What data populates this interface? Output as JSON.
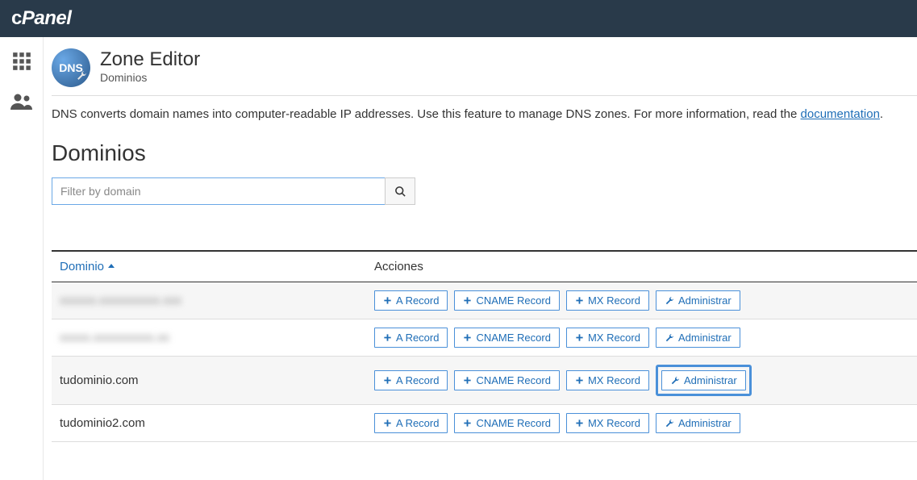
{
  "app": {
    "name": "cPanel"
  },
  "page": {
    "title": "Zone Editor",
    "subtitle": "Dominios",
    "intro_prefix": "DNS converts domain names into computer-readable IP addresses. Use this feature to manage DNS zones. For more information, read the ",
    "intro_link": "documentation",
    "intro_suffix": "."
  },
  "section": {
    "heading": "Dominios"
  },
  "filter": {
    "placeholder": "Filter by domain",
    "value": ""
  },
  "table": {
    "col_domain": "Dominio",
    "col_actions": "Acciones",
    "btn_a": "A Record",
    "btn_cname": "CNAME Record",
    "btn_mx": "MX Record",
    "btn_manage": "Administrar",
    "rows": [
      {
        "domain": "xxxxxx.xxxxxxxxxx.xxx",
        "blurred": true,
        "highlight": false
      },
      {
        "domain": "xxxxx.xxxxxxxxxx.xx",
        "blurred": true,
        "highlight": false
      },
      {
        "domain": "tudominio.com",
        "blurred": false,
        "highlight": true
      },
      {
        "domain": "tudominio2.com",
        "blurred": false,
        "highlight": false
      }
    ]
  },
  "colors": {
    "topbar": "#293a4a",
    "link": "#1f6eb7",
    "btn_border": "#4a90d9",
    "row_alt": "#f6f6f6"
  }
}
